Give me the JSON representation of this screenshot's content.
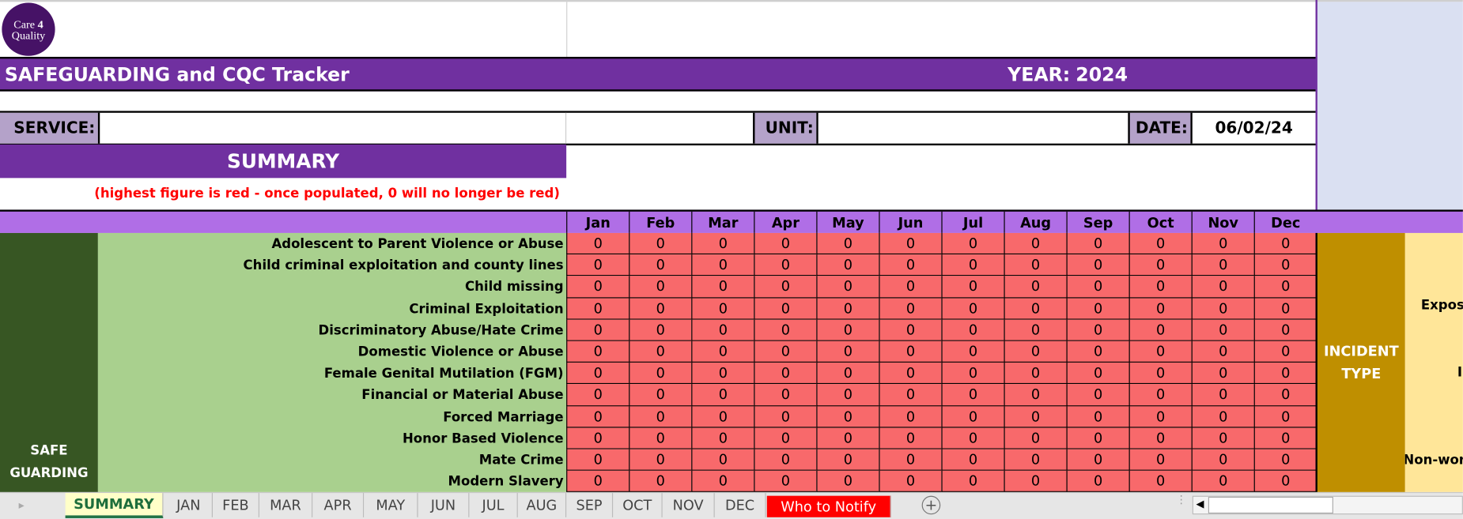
{
  "logo": {
    "line1": "Care",
    "num": "4",
    "line2": "Quality"
  },
  "title": "SAFEGUARDING and CQC Tracker",
  "year_label": "YEAR:",
  "year": "2024",
  "service_label": "SERVICE:",
  "service_value": "",
  "unit_label": "UNIT:",
  "unit_value": "",
  "date_label": "DATE:",
  "date_value": "06/02/24",
  "summary_heading": "SUMMARY",
  "note": "(highest figure is red - once populated, 0 will no longer be red)",
  "months": [
    "Jan",
    "Feb",
    "Mar",
    "Apr",
    "May",
    "Jun",
    "Jul",
    "Aug",
    "Sep",
    "Oct",
    "Nov",
    "Dec"
  ],
  "section_label": "SAFE GUARDING",
  "rows": [
    {
      "label": "Adolescent to Parent Violence or Abuse",
      "values": [
        0,
        0,
        0,
        0,
        0,
        0,
        0,
        0,
        0,
        0,
        0,
        0
      ]
    },
    {
      "label": "Child criminal exploitation and county lines",
      "values": [
        0,
        0,
        0,
        0,
        0,
        0,
        0,
        0,
        0,
        0,
        0,
        0
      ]
    },
    {
      "label": "Child missing",
      "values": [
        0,
        0,
        0,
        0,
        0,
        0,
        0,
        0,
        0,
        0,
        0,
        0
      ]
    },
    {
      "label": "Criminal Exploitation",
      "values": [
        0,
        0,
        0,
        0,
        0,
        0,
        0,
        0,
        0,
        0,
        0,
        0
      ]
    },
    {
      "label": "Discriminatory Abuse/Hate Crime",
      "values": [
        0,
        0,
        0,
        0,
        0,
        0,
        0,
        0,
        0,
        0,
        0,
        0
      ]
    },
    {
      "label": "Domestic Violence or Abuse",
      "values": [
        0,
        0,
        0,
        0,
        0,
        0,
        0,
        0,
        0,
        0,
        0,
        0
      ]
    },
    {
      "label": "Female Genital Mutilation (FGM)",
      "values": [
        0,
        0,
        0,
        0,
        0,
        0,
        0,
        0,
        0,
        0,
        0,
        0
      ]
    },
    {
      "label": "Financial or Material Abuse",
      "values": [
        0,
        0,
        0,
        0,
        0,
        0,
        0,
        0,
        0,
        0,
        0,
        0
      ]
    },
    {
      "label": "Forced Marriage",
      "values": [
        0,
        0,
        0,
        0,
        0,
        0,
        0,
        0,
        0,
        0,
        0,
        0
      ]
    },
    {
      "label": "Honor Based Violence",
      "values": [
        0,
        0,
        0,
        0,
        0,
        0,
        0,
        0,
        0,
        0,
        0,
        0
      ]
    },
    {
      "label": "Mate Crime",
      "values": [
        0,
        0,
        0,
        0,
        0,
        0,
        0,
        0,
        0,
        0,
        0,
        0
      ]
    },
    {
      "label": "Modern Slavery",
      "values": [
        0,
        0,
        0,
        0,
        0,
        0,
        0,
        0,
        0,
        0,
        0,
        0
      ]
    }
  ],
  "incident_type_label": "INCIDENT TYPE",
  "incident_partial": [
    "Exposu",
    "In",
    "Non-work"
  ],
  "sheet_tabs": [
    "SUMMARY",
    "JAN",
    "FEB",
    "MAR",
    "APR",
    "MAY",
    "JUN",
    "JUL",
    "AUG",
    "SEP",
    "OCT",
    "NOV",
    "DEC",
    "Who to Notify"
  ],
  "active_tab": "SUMMARY",
  "colors": {
    "purple": "#7030a0",
    "header": "#b06ee6",
    "red_cell": "#f8696b",
    "dark_green": "#375623",
    "light_green": "#a9d08e",
    "incident": "#bf8f00",
    "incident_light": "#ffe699",
    "notify_tab": "#ff0000"
  }
}
